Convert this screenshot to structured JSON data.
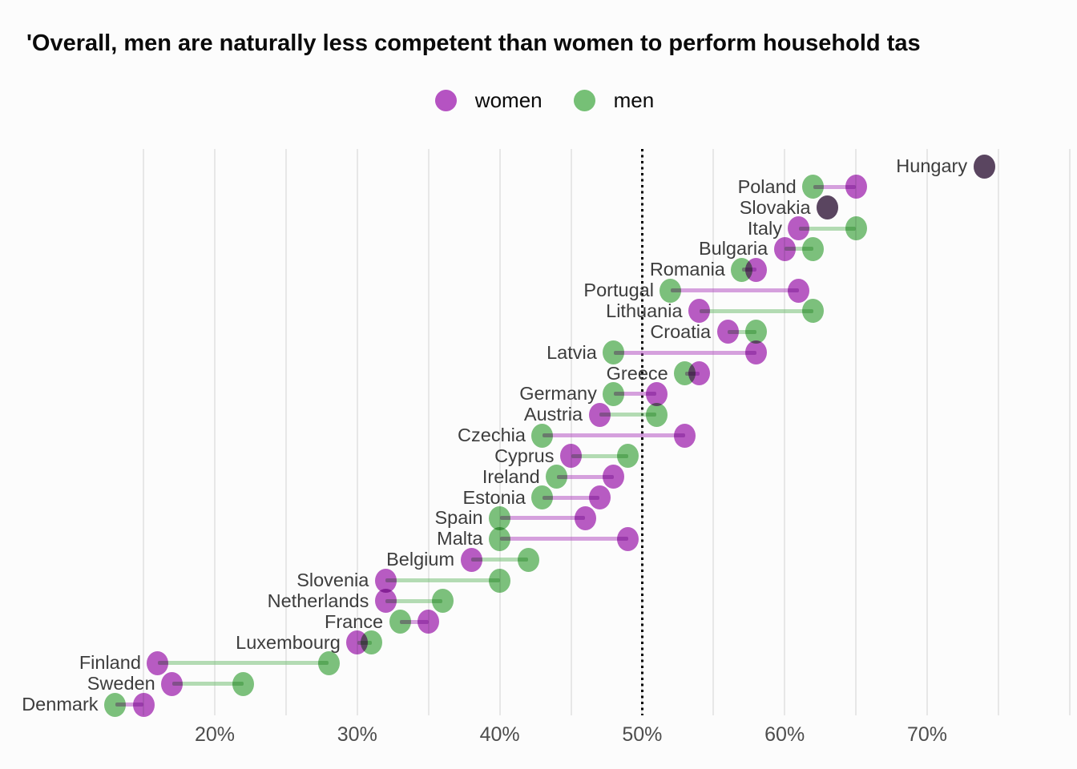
{
  "title": "'Overall, men are naturally less competent than women to perform household tas",
  "legend": {
    "items": [
      {
        "label": "women",
        "color": "#b553c2"
      },
      {
        "label": "men",
        "color": "#76c076"
      }
    ]
  },
  "colors": {
    "women": "#b553c2",
    "men": "#76c076",
    "gridline": "#e7e7e7",
    "reference_line": "#000000",
    "country_label": "#3d3d3d",
    "tick_label": "#4d4d4d",
    "background": "#fcfcfc"
  },
  "chart_data": {
    "type": "dumbbell",
    "title": "'Overall, men are naturally less competent than women to perform household tas",
    "unit": "%",
    "x_axis": {
      "tick_values": [
        20,
        30,
        40,
        50,
        60,
        70
      ],
      "tick_labels": [
        "20%",
        "30%",
        "40%",
        "50%",
        "60%",
        "70%"
      ],
      "gridline_values": [
        15,
        20,
        25,
        30,
        35,
        40,
        45,
        50,
        55,
        60,
        65,
        70,
        75,
        80
      ],
      "reference_line_value": 50,
      "range": [
        10,
        80
      ],
      "grid": true
    },
    "series_names": [
      "women",
      "men"
    ],
    "legend_position": "top-center",
    "countries": [
      {
        "name": "Hungary",
        "women": 74,
        "men": 74
      },
      {
        "name": "Poland",
        "women": 65,
        "men": 62
      },
      {
        "name": "Slovakia",
        "women": 63,
        "men": 63
      },
      {
        "name": "Italy",
        "women": 61,
        "men": 65
      },
      {
        "name": "Bulgaria",
        "women": 60,
        "men": 62
      },
      {
        "name": "Romania",
        "women": 58,
        "men": 57
      },
      {
        "name": "Portugal",
        "women": 61,
        "men": 52
      },
      {
        "name": "Lithuania",
        "women": 54,
        "men": 62
      },
      {
        "name": "Croatia",
        "women": 56,
        "men": 58
      },
      {
        "name": "Latvia",
        "women": 58,
        "men": 48
      },
      {
        "name": "Greece",
        "women": 54,
        "men": 53
      },
      {
        "name": "Germany",
        "women": 51,
        "men": 48
      },
      {
        "name": "Austria",
        "women": 47,
        "men": 51
      },
      {
        "name": "Czechia",
        "women": 53,
        "men": 43
      },
      {
        "name": "Cyprus",
        "women": 45,
        "men": 49
      },
      {
        "name": "Ireland",
        "women": 48,
        "men": 44
      },
      {
        "name": "Estonia",
        "women": 47,
        "men": 43
      },
      {
        "name": "Spain",
        "women": 46,
        "men": 40
      },
      {
        "name": "Malta",
        "women": 49,
        "men": 40
      },
      {
        "name": "Belgium",
        "women": 38,
        "men": 42
      },
      {
        "name": "Slovenia",
        "women": 32,
        "men": 40
      },
      {
        "name": "Netherlands",
        "women": 32,
        "men": 36
      },
      {
        "name": "France",
        "women": 35,
        "men": 33
      },
      {
        "name": "Luxembourg",
        "women": 30,
        "men": 31
      },
      {
        "name": "Finland",
        "women": 16,
        "men": 28
      },
      {
        "name": "Sweden",
        "women": 17,
        "men": 22
      },
      {
        "name": "Denmark",
        "women": 15,
        "men": 13
      }
    ]
  }
}
